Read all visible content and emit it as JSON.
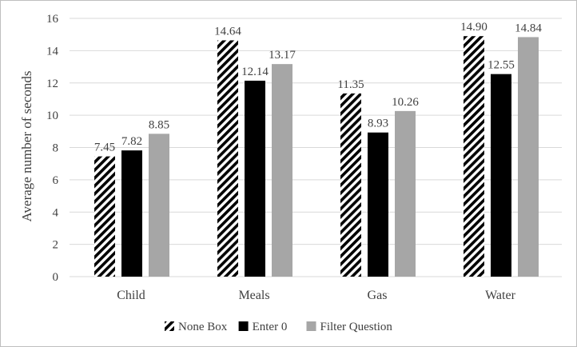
{
  "chart_data": {
    "type": "bar",
    "title": "",
    "xlabel": "",
    "ylabel": "Average number of seconds",
    "ylim": [
      0,
      16
    ],
    "yticks": [
      0,
      2,
      4,
      6,
      8,
      10,
      12,
      14,
      16
    ],
    "grid": true,
    "legend_position": "bottom",
    "categories": [
      "Child",
      "Meals",
      "Gas",
      "Water"
    ],
    "series": [
      {
        "name": "None Box",
        "values": [
          7.45,
          14.64,
          11.35,
          14.9
        ],
        "labels": [
          "7.45",
          "14.64",
          "11.35",
          "14.90"
        ],
        "style": "hatched",
        "color": "#000000"
      },
      {
        "name": "Enter 0",
        "values": [
          7.82,
          12.14,
          8.93,
          12.55
        ],
        "labels": [
          "7.82",
          "12.14",
          "8.93",
          "12.55"
        ],
        "style": "solid",
        "color": "#000000"
      },
      {
        "name": "Filter Question",
        "values": [
          8.85,
          13.17,
          10.26,
          14.84
        ],
        "labels": [
          "8.85",
          "13.17",
          "10.26",
          "14.84"
        ],
        "style": "solid",
        "color": "#a6a6a6"
      }
    ]
  }
}
